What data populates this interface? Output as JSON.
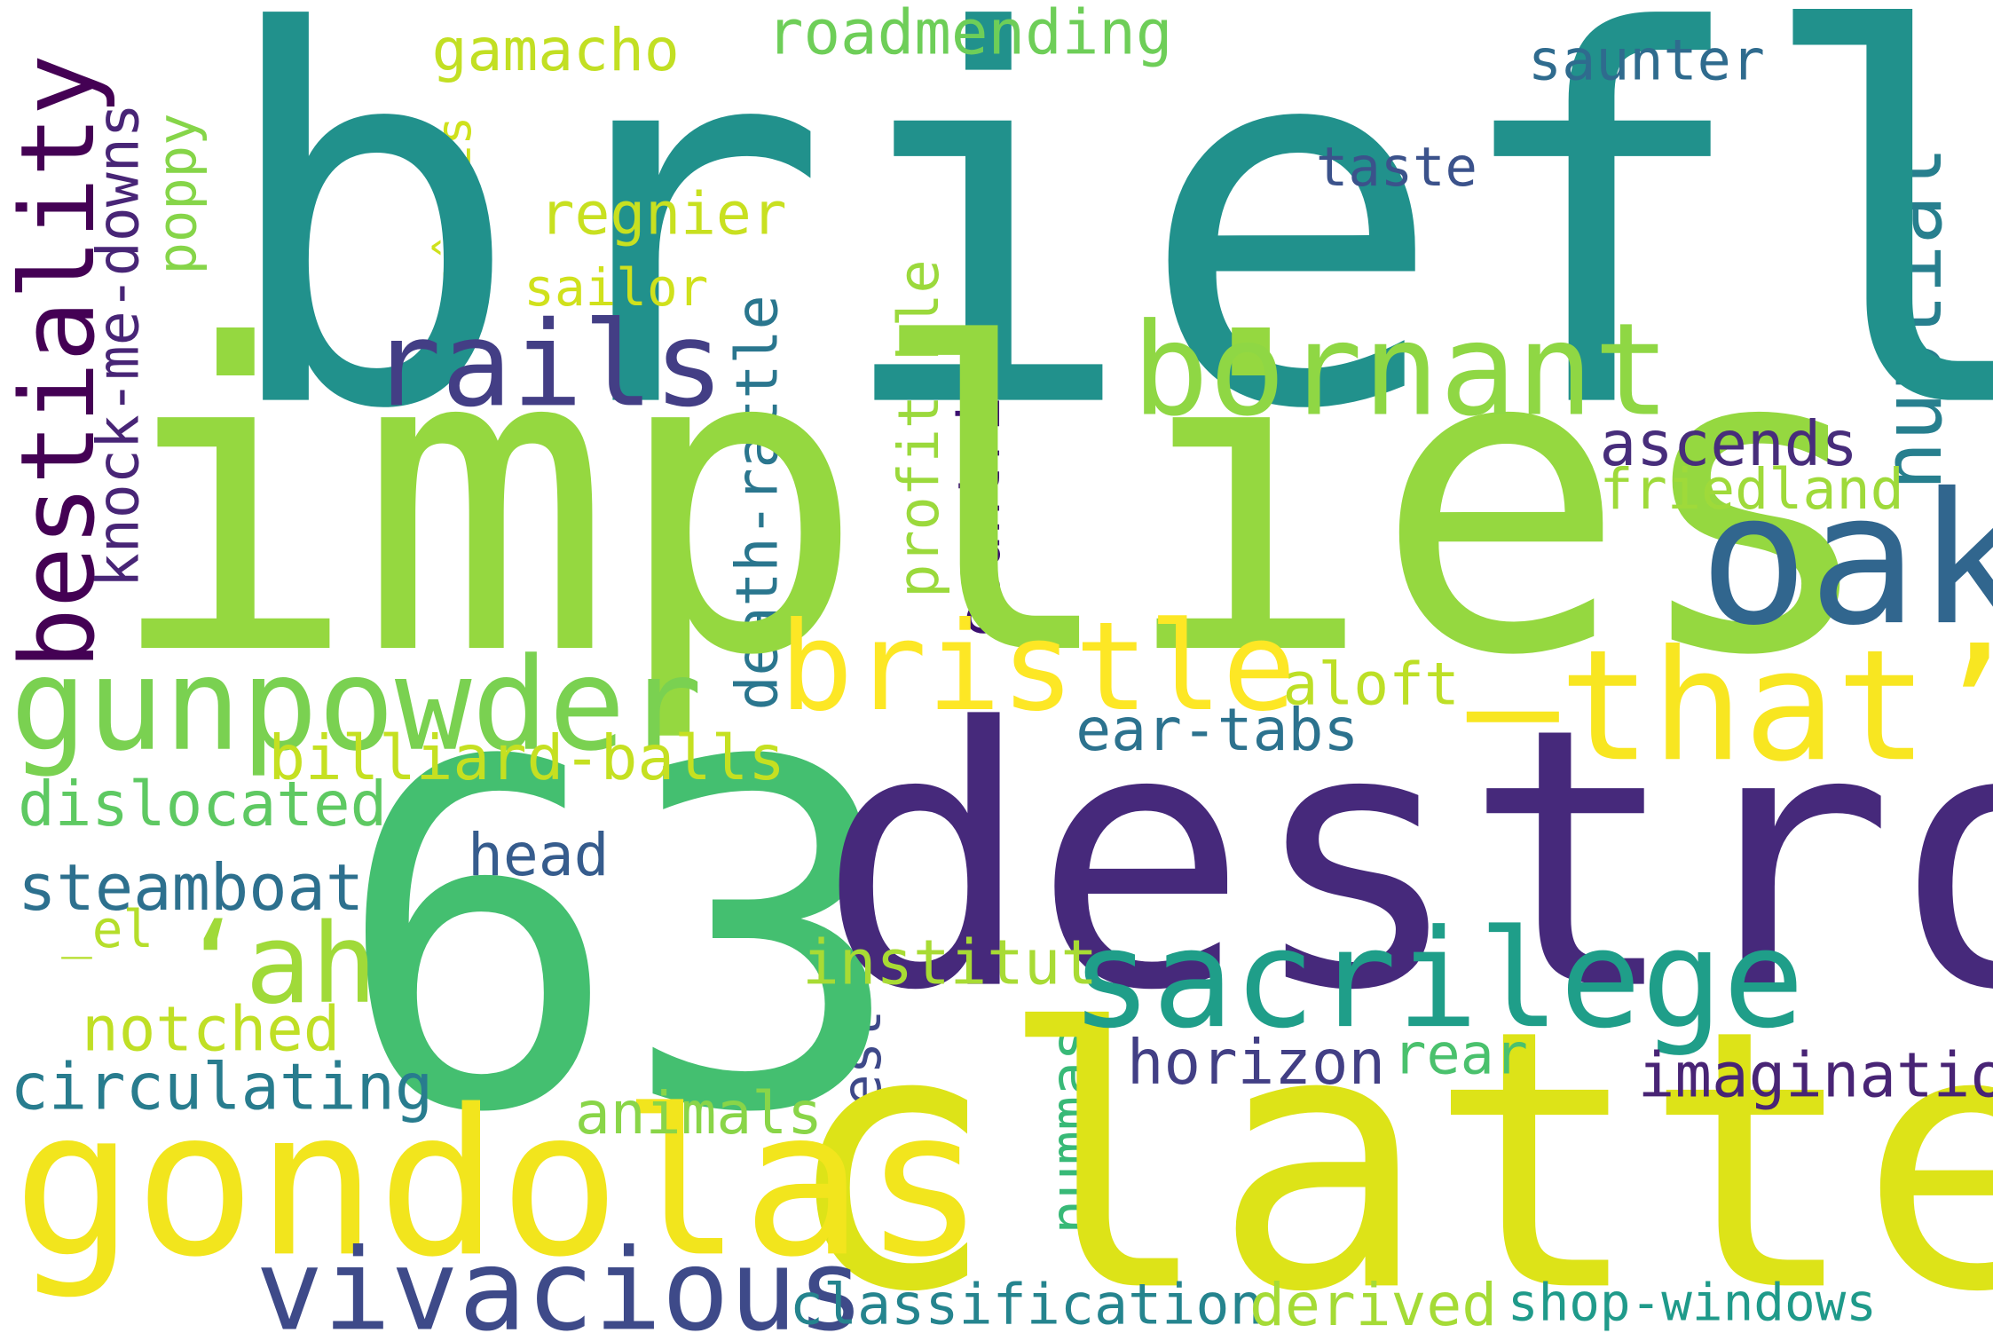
{
  "words": [
    {
      "text": "briefly",
      "color": "#21918c"
    },
    {
      "text": "implies",
      "color": "#95d840"
    },
    {
      "text": "63",
      "color": "#44bf70"
    },
    {
      "text": "destroy",
      "color": "#46297b"
    },
    {
      "text": "clatter",
      "color": "#dde318"
    },
    {
      "text": "gondolas",
      "color": "#f2e51d"
    },
    {
      "text": "oak",
      "color": "#31668e"
    },
    {
      "text": "bestiality",
      "color": "#440154"
    },
    {
      "text": "sacrilege",
      "color": "#1f9e89"
    },
    {
      "text": "—that’s",
      "color": "#f8e621"
    },
    {
      "text": "bristle",
      "color": "#fde725"
    },
    {
      "text": "bornant",
      "color": "#8fd744"
    },
    {
      "text": "rails",
      "color": "#433e85"
    },
    {
      "text": "gunpowder",
      "color": "#7ad151"
    },
    {
      "text": "nuptial",
      "color": "#277f8e"
    },
    {
      "text": "vivacious",
      "color": "#3e4a89"
    },
    {
      "text": "‘ah",
      "color": "#a0da39"
    },
    {
      "text": "knock-me-downs",
      "color": "#482576"
    },
    {
      "text": "roadmending",
      "color": "#6ece58"
    },
    {
      "text": "gamacho",
      "color": "#c2df23"
    },
    {
      "text": "saunter",
      "color": "#2f6b8e"
    },
    {
      "text": "poppy",
      "color": "#86d549"
    },
    {
      "text": "nîmois",
      "color": "#cfe11c"
    },
    {
      "text": "regnier",
      "color": "#c8e020"
    },
    {
      "text": "taste",
      "color": "#3b528b"
    },
    {
      "text": "sailor",
      "color": "#d0e11c"
    },
    {
      "text": "profitable",
      "color": "#9bd93c"
    },
    {
      "text": "death-rattle",
      "color": "#2a768e"
    },
    {
      "text": "countries",
      "color": "#3b0f70"
    },
    {
      "text": "ascends",
      "color": "#472d7b"
    },
    {
      "text": "friedland",
      "color": "#9fda3a"
    },
    {
      "text": "aloft",
      "color": "#bddf26"
    },
    {
      "text": "ear-tabs",
      "color": "#2c728e"
    },
    {
      "text": "billiard-balls",
      "color": "#c5e021"
    },
    {
      "text": "dislocated",
      "color": "#5ec962"
    },
    {
      "text": "head",
      "color": "#365c8d"
    },
    {
      "text": "steamboat",
      "color": "#2d708e"
    },
    {
      "text": "_el",
      "color": "#b5de2b"
    },
    {
      "text": "institut",
      "color": "#a8db34"
    },
    {
      "text": "notched",
      "color": "#c0df25"
    },
    {
      "text": "est",
      "color": "#3e4989"
    },
    {
      "text": "nummas",
      "color": "#38b977"
    },
    {
      "text": "horizon",
      "color": "#423f85"
    },
    {
      "text": "rear",
      "color": "#4ac16d"
    },
    {
      "text": "imagination",
      "color": "#482475"
    },
    {
      "text": "circulating",
      "color": "#287c8e"
    },
    {
      "text": "animals",
      "color": "#89d548"
    },
    {
      "text": "classification",
      "color": "#25848e"
    },
    {
      "text": "derived",
      "color": "#a5db36"
    },
    {
      "text": "shop-windows",
      "color": "#1f9a8a"
    }
  ]
}
